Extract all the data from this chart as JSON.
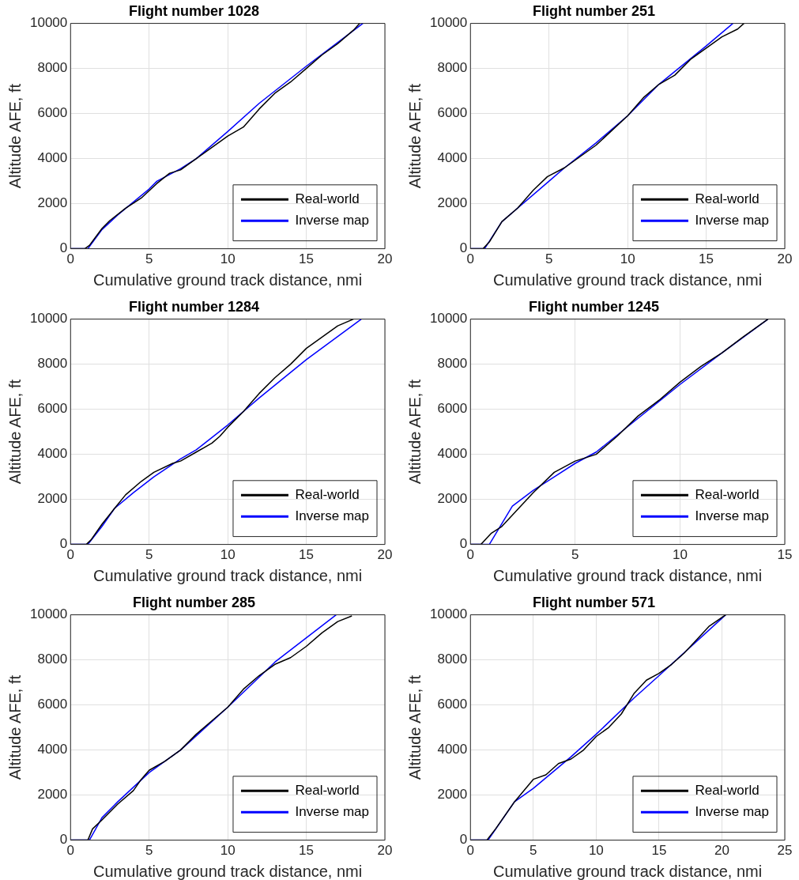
{
  "chart_data": [
    {
      "type": "line",
      "title": "Flight number 1028",
      "xlabel": "Cumulative ground track distance, nmi",
      "ylabel": "Altitude AFE, ft",
      "xlim": [
        0,
        20
      ],
      "xticks": [
        0,
        5,
        10,
        15,
        20
      ],
      "ylim": [
        0,
        10000
      ],
      "yticks": [
        0,
        2000,
        4000,
        6000,
        8000,
        10000
      ],
      "grid": true,
      "legend": "bottom right",
      "series": [
        {
          "name": "Real-world",
          "color": "#000000",
          "x": [
            0,
            0.9,
            1.2,
            2,
            2.5,
            3.5,
            4.5,
            5.5,
            6.3,
            7,
            8,
            9,
            10,
            11,
            12,
            13,
            14,
            15,
            16,
            17,
            18,
            18.4
          ],
          "values": [
            0,
            0,
            150,
            900,
            1250,
            1800,
            2250,
            2900,
            3350,
            3500,
            4000,
            4500,
            5000,
            5400,
            6200,
            6900,
            7400,
            8000,
            8600,
            9100,
            9700,
            10000
          ]
        },
        {
          "name": "Inverse map",
          "color": "#0000ff",
          "x": [
            0,
            1.1,
            2,
            3,
            5,
            5.5,
            7,
            8,
            10,
            12,
            15,
            18.6
          ],
          "values": [
            0,
            0,
            850,
            1500,
            2650,
            3000,
            3550,
            4000,
            5200,
            6450,
            8100,
            10000
          ]
        }
      ]
    },
    {
      "type": "line",
      "title": "Flight number 251",
      "xlabel": "Cumulative ground track distance, nmi",
      "ylabel": "Altitude AFE, ft",
      "xlim": [
        0,
        20
      ],
      "xticks": [
        0,
        5,
        10,
        15,
        20
      ],
      "ylim": [
        0,
        10000
      ],
      "yticks": [
        0,
        2000,
        4000,
        6000,
        8000,
        10000
      ],
      "grid": true,
      "legend": "bottom right",
      "series": [
        {
          "name": "Real-world",
          "color": "#000000",
          "x": [
            0,
            0.8,
            1.2,
            2,
            3,
            4,
            4.9,
            6,
            7,
            8,
            10,
            11,
            12,
            13,
            14,
            15,
            16,
            17,
            17.4
          ],
          "values": [
            0,
            0,
            300,
            1200,
            1800,
            2600,
            3200,
            3600,
            4100,
            4600,
            5900,
            6700,
            7300,
            7700,
            8400,
            8900,
            9400,
            9750,
            10000
          ]
        },
        {
          "name": "Inverse map",
          "color": "#0000ff",
          "x": [
            0,
            0.9,
            2,
            3,
            5,
            6,
            8,
            10,
            12,
            15,
            16.7
          ],
          "values": [
            0,
            0,
            1200,
            1800,
            3000,
            3600,
            4700,
            5900,
            7300,
            9000,
            10000
          ]
        }
      ]
    },
    {
      "type": "line",
      "title": "Flight number 1284",
      "xlabel": "Cumulative ground track distance, nmi",
      "ylabel": "Altitude AFE, ft",
      "xlim": [
        0,
        20
      ],
      "xticks": [
        0,
        5,
        10,
        15,
        20
      ],
      "ylim": [
        0,
        10000
      ],
      "yticks": [
        0,
        2000,
        4000,
        6000,
        8000,
        10000
      ],
      "grid": true,
      "legend": "bottom right",
      "series": [
        {
          "name": "Real-world",
          "color": "#000000",
          "x": [
            0,
            1,
            1.3,
            2,
            2.8,
            3.5,
            4.5,
            5.3,
            6.5,
            7,
            8,
            9,
            9.5,
            10,
            11,
            12,
            13,
            14,
            15,
            16,
            17,
            18
          ],
          "values": [
            0,
            0,
            200,
            900,
            1600,
            2200,
            2800,
            3200,
            3600,
            3700,
            4100,
            4500,
            4800,
            5200,
            5900,
            6700,
            7400,
            8000,
            8700,
            9200,
            9700,
            10000
          ]
        },
        {
          "name": "Inverse map",
          "color": "#0000ff",
          "x": [
            0,
            1.1,
            2,
            2.8,
            4,
            5.3,
            7,
            8,
            10,
            12,
            15,
            18.5
          ],
          "values": [
            0,
            0,
            800,
            1600,
            2300,
            3000,
            3800,
            4200,
            5300,
            6500,
            8200,
            10000
          ]
        }
      ]
    },
    {
      "type": "line",
      "title": "Flight number 1245",
      "xlabel": "Cumulative ground track distance, nmi",
      "ylabel": "Altitude AFE, ft",
      "xlim": [
        0,
        15
      ],
      "xticks": [
        0,
        5,
        10,
        15
      ],
      "ylim": [
        0,
        10000
      ],
      "yticks": [
        0,
        2000,
        4000,
        6000,
        8000,
        10000
      ],
      "grid": true,
      "legend": "bottom right",
      "series": [
        {
          "name": "Real-world",
          "color": "#000000",
          "x": [
            0,
            0.5,
            1,
            1.5,
            2,
            3,
            4,
            5,
            6,
            7,
            8,
            9,
            10,
            11,
            12,
            13,
            14.2
          ],
          "values": [
            0,
            0,
            500,
            800,
            1300,
            2300,
            3200,
            3700,
            4000,
            4800,
            5700,
            6400,
            7200,
            7900,
            8500,
            9200,
            10000
          ]
        },
        {
          "name": "Inverse map",
          "color": "#0000ff",
          "x": [
            0,
            0.9,
            2,
            3,
            4,
            5,
            6,
            8,
            10,
            12,
            14.2
          ],
          "values": [
            0,
            0,
            1700,
            2400,
            3000,
            3600,
            4100,
            5600,
            7100,
            8500,
            10000
          ]
        }
      ]
    },
    {
      "type": "line",
      "title": "Flight number 285",
      "xlabel": "Cumulative ground track distance, nmi",
      "ylabel": "Altitude AFE, ft",
      "xlim": [
        0,
        20
      ],
      "xticks": [
        0,
        5,
        10,
        15,
        20
      ],
      "ylim": [
        0,
        10000
      ],
      "yticks": [
        0,
        2000,
        4000,
        6000,
        8000,
        10000
      ],
      "grid": true,
      "legend": "bottom right",
      "series": [
        {
          "name": "Real-world",
          "color": "#000000",
          "x": [
            0,
            1.1,
            1.4,
            2,
            3,
            4,
            4.5,
            5,
            6,
            7,
            8,
            9,
            10,
            11,
            12,
            13,
            14,
            15,
            16,
            17,
            17.9
          ],
          "values": [
            0,
            0,
            500,
            900,
            1600,
            2200,
            2700,
            3100,
            3500,
            4000,
            4700,
            5300,
            5900,
            6700,
            7300,
            7800,
            8100,
            8600,
            9200,
            9700,
            9950
          ]
        },
        {
          "name": "Inverse map",
          "color": "#0000ff",
          "x": [
            0,
            1.2,
            2,
            3,
            5,
            7,
            10,
            13,
            16.9
          ],
          "values": [
            0,
            0,
            1000,
            1700,
            3000,
            4000,
            5900,
            7900,
            10000
          ]
        }
      ]
    },
    {
      "type": "line",
      "title": "Flight number 571",
      "xlabel": "Cumulative ground track distance, nmi",
      "ylabel": "Altitude AFE, ft",
      "xlim": [
        0,
        25
      ],
      "xticks": [
        0,
        5,
        10,
        15,
        20,
        25
      ],
      "ylim": [
        0,
        10000
      ],
      "yticks": [
        0,
        2000,
        4000,
        6000,
        8000,
        10000
      ],
      "grid": true,
      "legend": "bottom right",
      "series": [
        {
          "name": "Real-world",
          "color": "#000000",
          "x": [
            0,
            1.3,
            2,
            3.5,
            5,
            6,
            7,
            8,
            9,
            10,
            11,
            12,
            13,
            14,
            15,
            16,
            17,
            18,
            19,
            20.3
          ],
          "values": [
            0,
            0,
            500,
            1700,
            2700,
            2900,
            3400,
            3600,
            4000,
            4600,
            5000,
            5600,
            6500,
            7100,
            7400,
            7800,
            8300,
            8900,
            9500,
            10000
          ]
        },
        {
          "name": "Inverse map",
          "color": "#0000ff",
          "x": [
            0,
            1.4,
            3.5,
            5,
            8,
            10,
            13,
            15,
            20.3
          ],
          "values": [
            0,
            0,
            1700,
            2300,
            3700,
            4700,
            6300,
            7300,
            10000
          ]
        }
      ]
    }
  ]
}
